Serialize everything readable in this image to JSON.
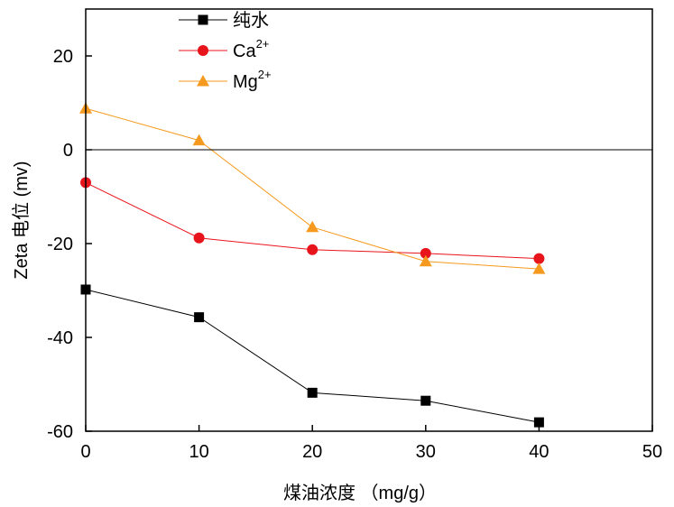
{
  "chart_data": {
    "type": "line",
    "title": "",
    "xlabel": "煤油浓度 （mg/g）",
    "ylabel": "Zeta 电位 (mv)",
    "xlim": [
      0,
      50
    ],
    "ylim": [
      -60,
      30
    ],
    "xticks": [
      0,
      10,
      20,
      30,
      40,
      50
    ],
    "yticks": [
      -60,
      -40,
      -20,
      0,
      20
    ],
    "x": [
      0,
      10,
      20,
      30,
      40
    ],
    "reference_line_y": 0,
    "grid": false,
    "legend_position": "top-left",
    "series": [
      {
        "name": "纯水",
        "name_base": "纯水",
        "name_sup": "",
        "marker": "square",
        "color": "#000000",
        "values": [
          -29.8,
          -35.7,
          -51.8,
          -53.5,
          -58.1
        ]
      },
      {
        "name": "Ca2+",
        "name_base": "Ca",
        "name_sup": "2+",
        "marker": "circle",
        "color": "#e8141b",
        "values": [
          -7.0,
          -18.8,
          -21.3,
          -22.1,
          -23.2
        ]
      },
      {
        "name": "Mg2+",
        "name_base": "Mg",
        "name_sup": "2+",
        "marker": "triangle",
        "color": "#f59a1e",
        "values": [
          8.8,
          2.0,
          -16.5,
          -23.8,
          -25.4
        ]
      }
    ]
  }
}
